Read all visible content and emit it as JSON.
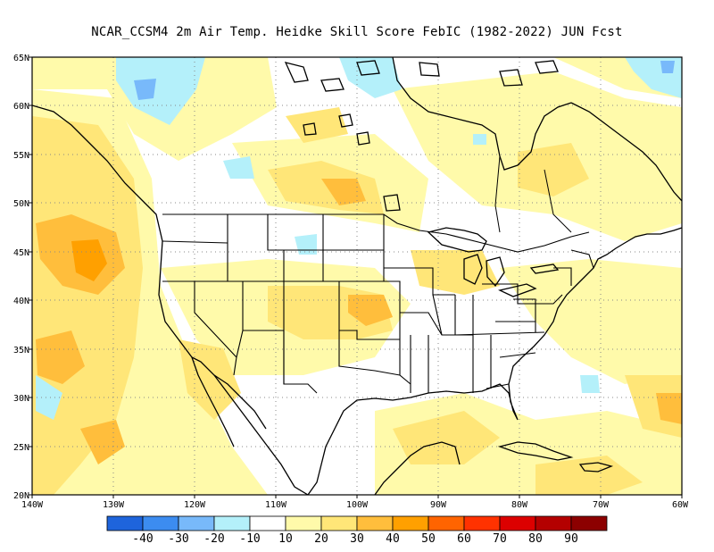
{
  "title": "NCAR_CCSM4  2m Air Temp. Heidke Skill Score FebIC (1982-2022) JUN Fcst",
  "lat_labels": [
    "65N",
    "60N",
    "55N",
    "50N",
    "45N",
    "40N",
    "35N",
    "30N",
    "25N",
    "20N"
  ],
  "lon_labels": [
    "140W",
    "130W",
    "120W",
    "110W",
    "100W",
    "90W",
    "80W",
    "70W",
    "60W"
  ],
  "colorbar": {
    "labels": [
      "-40",
      "-30",
      "-20",
      "-10",
      "10",
      "20",
      "30",
      "40",
      "50",
      "60",
      "70",
      "80",
      "90"
    ],
    "colors": [
      "#1e64dc",
      "#3c8cf0",
      "#78b9fa",
      "#b4f0fa",
      "#ffffff",
      "#fffaaa",
      "#ffe678",
      "#ffbe3c",
      "#ffa000",
      "#ff6400",
      "#ff3200",
      "#dc0000",
      "#b40000",
      "#8c0000"
    ]
  },
  "map_colors": {
    "pos10": "#fffaaa",
    "pos20": "#ffe678",
    "pos30": "#ffbe3c",
    "pos40": "#ffa000",
    "neg10": "#b4f0fa",
    "neg20": "#78b9fa"
  }
}
